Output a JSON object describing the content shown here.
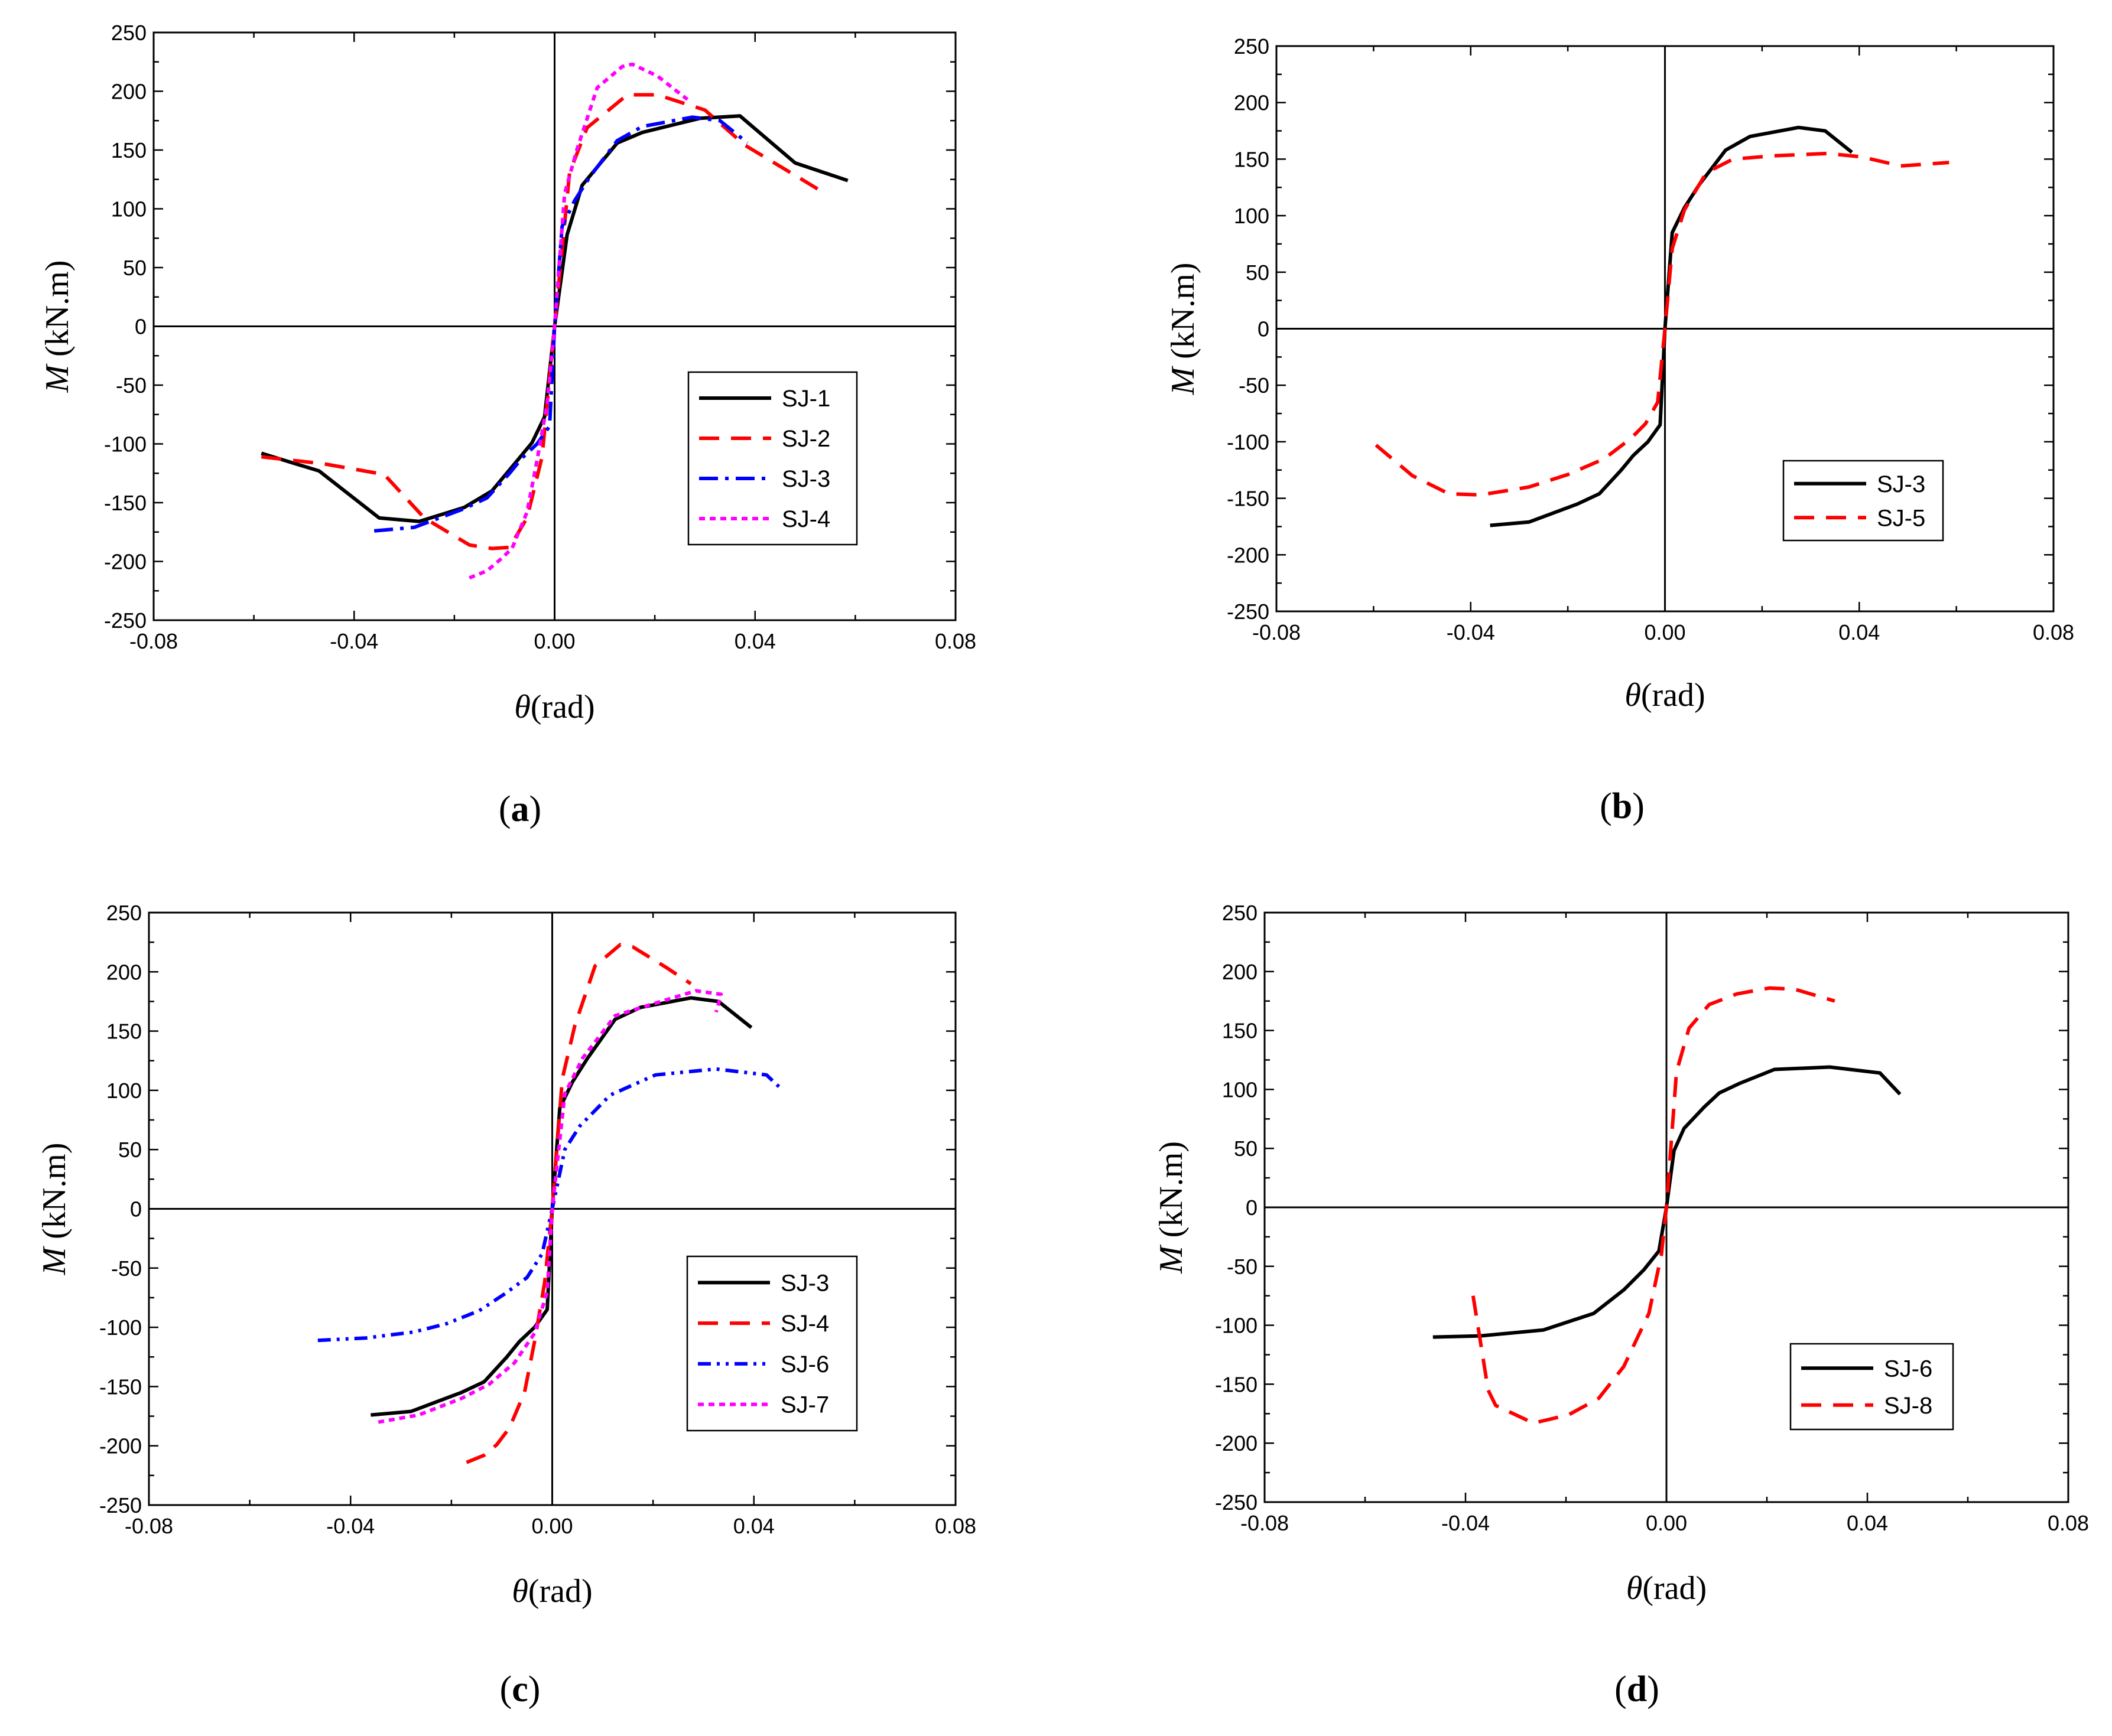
{
  "figure": {
    "panels": [
      "a",
      "b",
      "c",
      "d"
    ]
  },
  "chart_data": [
    {
      "id": "a",
      "type": "line",
      "panel_label": "a",
      "xlabel_symbol": "θ",
      "xlabel_unit": "(rad)",
      "ylabel_symbol": "M",
      "ylabel_unit": " (kN.m)",
      "xlim": [
        -0.08,
        0.08
      ],
      "ylim": [
        -250,
        250
      ],
      "xticks": [
        -0.08,
        -0.04,
        0.0,
        0.04,
        0.08
      ],
      "xtick_labels": [
        "-0.08",
        "-0.04",
        "0.00",
        "0.04",
        "0.08"
      ],
      "yticks": [
        -250,
        -200,
        -150,
        -100,
        -50,
        0,
        50,
        100,
        150,
        200,
        250
      ],
      "ytick_labels": [
        "-250",
        "-200",
        "-150",
        "-100",
        "-50",
        "0",
        "50",
        "100",
        "150",
        "200",
        "250"
      ],
      "legend_position": "bottom-right",
      "series": [
        {
          "name": "SJ-1",
          "color": "#000000",
          "dash": "solid",
          "x": [
            -0.0585,
            -0.047,
            -0.035,
            -0.027,
            -0.018,
            -0.0125,
            -0.008,
            -0.0045,
            -0.002,
            0,
            0.0025,
            0.0055,
            0.0125,
            0.0175,
            0.029,
            0.037,
            0.048,
            0.0585
          ],
          "y": [
            -108,
            -123,
            -163,
            -166,
            -154,
            -140,
            -117,
            -99,
            -77,
            0,
            78,
            120,
            156,
            165,
            177,
            179,
            139,
            124
          ]
        },
        {
          "name": "SJ-2",
          "color": "#ff0000",
          "dash": "dash",
          "x": [
            -0.0585,
            -0.046,
            -0.034,
            -0.026,
            -0.017,
            -0.0125,
            -0.009,
            -0.0055,
            -0.0025,
            0,
            0.003,
            0.0065,
            0.0145,
            0.0205,
            0.03,
            0.038,
            0.047,
            0.054
          ],
          "y": [
            -111,
            -117,
            -126,
            -163,
            -186,
            -189,
            -188,
            -163,
            -111,
            0,
            131,
            169,
            197,
            197,
            184,
            154,
            131,
            113
          ]
        },
        {
          "name": "SJ-3",
          "color": "#0000ff",
          "dash": "dashdot",
          "x": [
            -0.036,
            -0.028,
            -0.018,
            -0.0135,
            -0.009,
            -0.0065,
            -0.0035,
            -0.001,
            0,
            0.0015,
            0.004,
            0.007,
            0.0125,
            0.0175,
            0.0275,
            0.033,
            0.0385
          ],
          "y": [
            -174,
            -171,
            -155,
            -146,
            -125,
            -112,
            -100,
            -85,
            0,
            85,
            107,
            127,
            158,
            170,
            178,
            175,
            156
          ]
        },
        {
          "name": "SJ-4",
          "color": "#ff00ff",
          "dash": "dot",
          "x": [
            -0.017,
            -0.0135,
            -0.011,
            -0.0085,
            -0.0055,
            -0.0035,
            -0.0015,
            0,
            0.002,
            0.0045,
            0.0085,
            0.0135,
            0.0155,
            0.0205,
            0.0265
          ],
          "y": [
            -214,
            -208,
            -199,
            -189,
            -158,
            -114,
            -66,
            0,
            113,
            151,
            203,
            221,
            223,
            213,
            193
          ]
        }
      ]
    },
    {
      "id": "b",
      "type": "line",
      "panel_label": "b",
      "xlabel_symbol": "θ",
      "xlabel_unit": "(rad)",
      "ylabel_symbol": "M",
      "ylabel_unit": " (kN.m)",
      "xlim": [
        -0.08,
        0.08
      ],
      "ylim": [
        -250,
        250
      ],
      "xticks": [
        -0.08,
        -0.04,
        0.0,
        0.04,
        0.08
      ],
      "xtick_labels": [
        "-0.08",
        "-0.04",
        "0.00",
        "0.04",
        "0.08"
      ],
      "yticks": [
        -250,
        -200,
        -150,
        -100,
        -50,
        0,
        50,
        100,
        150,
        200,
        250
      ],
      "ytick_labels": [
        "-250",
        "-200",
        "-150",
        "-100",
        "-50",
        "0",
        "50",
        "100",
        "150",
        "200",
        "250"
      ],
      "legend_position": "middle-right",
      "series": [
        {
          "name": "SJ-3",
          "color": "#000000",
          "dash": "solid",
          "x": [
            -0.036,
            -0.028,
            -0.018,
            -0.0135,
            -0.009,
            -0.0065,
            -0.0035,
            -0.001,
            0,
            0.0015,
            0.004,
            0.007,
            0.0125,
            0.0175,
            0.0275,
            0.033,
            0.0385
          ],
          "y": [
            -174,
            -171,
            -155,
            -146,
            -125,
            -112,
            -100,
            -85,
            0,
            85,
            107,
            127,
            158,
            170,
            178,
            175,
            156
          ]
        },
        {
          "name": "SJ-5",
          "color": "#ff0000",
          "dash": "dash",
          "x": [
            -0.0595,
            -0.052,
            -0.0445,
            -0.038,
            -0.028,
            -0.02,
            -0.0125,
            -0.007,
            -0.004,
            -0.0015,
            0,
            0.0015,
            0.004,
            0.0085,
            0.014,
            0.0225,
            0.0335,
            0.0405,
            0.0485,
            0.0585
          ],
          "y": [
            -103,
            -130,
            -146,
            -147,
            -140,
            -129,
            -115,
            -97,
            -84,
            -65,
            0,
            71,
            105,
            138,
            150,
            153,
            155,
            152,
            144,
            147
          ]
        }
      ]
    },
    {
      "id": "c",
      "type": "line",
      "panel_label": "c",
      "xlabel_symbol": "θ",
      "xlabel_unit": "(rad)",
      "ylabel_symbol": "M",
      "ylabel_unit": " (kN.m)",
      "xlim": [
        -0.08,
        0.08
      ],
      "ylim": [
        -250,
        250
      ],
      "xticks": [
        -0.08,
        -0.04,
        0.0,
        0.04,
        0.08
      ],
      "xtick_labels": [
        "-0.08",
        "-0.04",
        "0.00",
        "0.04",
        "0.08"
      ],
      "yticks": [
        -250,
        -200,
        -150,
        -100,
        -50,
        0,
        50,
        100,
        150,
        200,
        250
      ],
      "ytick_labels": [
        "-250",
        "-200",
        "-150",
        "-100",
        "-50",
        "0",
        "50",
        "100",
        "150",
        "200",
        "250"
      ],
      "legend_position": "bottom-right",
      "series": [
        {
          "name": "SJ-3",
          "color": "#000000",
          "dash": "solid",
          "x": [
            -0.036,
            -0.028,
            -0.018,
            -0.0135,
            -0.009,
            -0.0065,
            -0.0035,
            -0.001,
            0,
            0.0015,
            0.004,
            0.007,
            0.0125,
            0.0175,
            0.0275,
            0.033,
            0.0395
          ],
          "y": [
            -174,
            -171,
            -155,
            -146,
            -125,
            -112,
            -100,
            -85,
            0,
            85,
            107,
            127,
            160,
            170,
            178,
            175,
            153
          ]
        },
        {
          "name": "SJ-4",
          "color": "#ff0000",
          "dash": "dash",
          "x": [
            -0.017,
            -0.0135,
            -0.011,
            -0.0085,
            -0.0055,
            -0.0035,
            -0.0015,
            0,
            0.002,
            0.0045,
            0.0085,
            0.0135,
            0.016,
            0.0225,
            0.0275
          ],
          "y": [
            -214,
            -208,
            -199,
            -185,
            -155,
            -112,
            -62,
            0,
            110,
            155,
            205,
            223,
            221,
            204,
            190
          ]
        },
        {
          "name": "SJ-6",
          "color": "#0000ff",
          "dash": "dashdotdot",
          "x": [
            -0.0465,
            -0.037,
            -0.0275,
            -0.021,
            -0.0145,
            -0.0095,
            -0.005,
            -0.002,
            0,
            0.0025,
            0.0055,
            0.0115,
            0.0205,
            0.0325,
            0.0425,
            0.045
          ],
          "y": [
            -111,
            -109,
            -104,
            -97,
            -86,
            -72,
            -58,
            -38,
            0,
            50,
            70,
            96,
            113,
            118,
            113,
            103
          ]
        },
        {
          "name": "SJ-7",
          "color": "#ff00ff",
          "dash": "dot",
          "x": [
            -0.0345,
            -0.0265,
            -0.018,
            -0.0125,
            -0.0075,
            -0.0035,
            -0.001,
            0,
            0.0025,
            0.006,
            0.0125,
            0.0185,
            0.0285,
            0.0335,
            0.0325
          ],
          "y": [
            -180,
            -174,
            -160,
            -148,
            -130,
            -105,
            -70,
            0,
            97,
            127,
            163,
            171,
            184,
            181,
            166
          ]
        }
      ]
    },
    {
      "id": "d",
      "type": "line",
      "panel_label": "d",
      "xlabel_symbol": "θ",
      "xlabel_unit": "(rad)",
      "ylabel_symbol": "M",
      "ylabel_unit": " (kN.m)",
      "xlim": [
        -0.08,
        0.08
      ],
      "ylim": [
        -250,
        250
      ],
      "xticks": [
        -0.08,
        -0.04,
        0.0,
        0.04,
        0.08
      ],
      "xtick_labels": [
        "-0.08",
        "-0.04",
        "0.00",
        "0.04",
        "0.08"
      ],
      "yticks": [
        -250,
        -200,
        -150,
        -100,
        -50,
        0,
        50,
        100,
        150,
        200,
        250
      ],
      "ytick_labels": [
        "-250",
        "-200",
        "-150",
        "-100",
        "-50",
        "0",
        "50",
        "100",
        "150",
        "200",
        "250"
      ],
      "legend_position": "bottom-right",
      "series": [
        {
          "name": "SJ-6",
          "color": "#000000",
          "dash": "solid",
          "x": [
            -0.0465,
            -0.037,
            -0.0245,
            -0.0145,
            -0.0085,
            -0.0045,
            -0.0015,
            0,
            0.0015,
            0.0035,
            0.0075,
            0.0105,
            0.0145,
            0.0215,
            0.0325,
            0.0425,
            0.0465
          ],
          "y": [
            -110,
            -109,
            -104,
            -90,
            -70,
            -53,
            -37,
            0,
            48,
            67,
            85,
            97,
            105,
            117,
            119,
            114,
            96
          ]
        },
        {
          "name": "SJ-8",
          "color": "#ff0000",
          "dash": "dash",
          "x": [
            -0.0385,
            -0.0355,
            -0.034,
            -0.0265,
            -0.0195,
            -0.0135,
            -0.0085,
            -0.0035,
            -0.001,
            0,
            0.002,
            0.0045,
            0.0085,
            0.014,
            0.0205,
            0.0255,
            0.0335
          ],
          "y": [
            -75,
            -155,
            -168,
            -183,
            -176,
            -162,
            -135,
            -90,
            -40,
            0,
            115,
            152,
            172,
            181,
            186,
            185,
            175
          ]
        }
      ]
    }
  ]
}
